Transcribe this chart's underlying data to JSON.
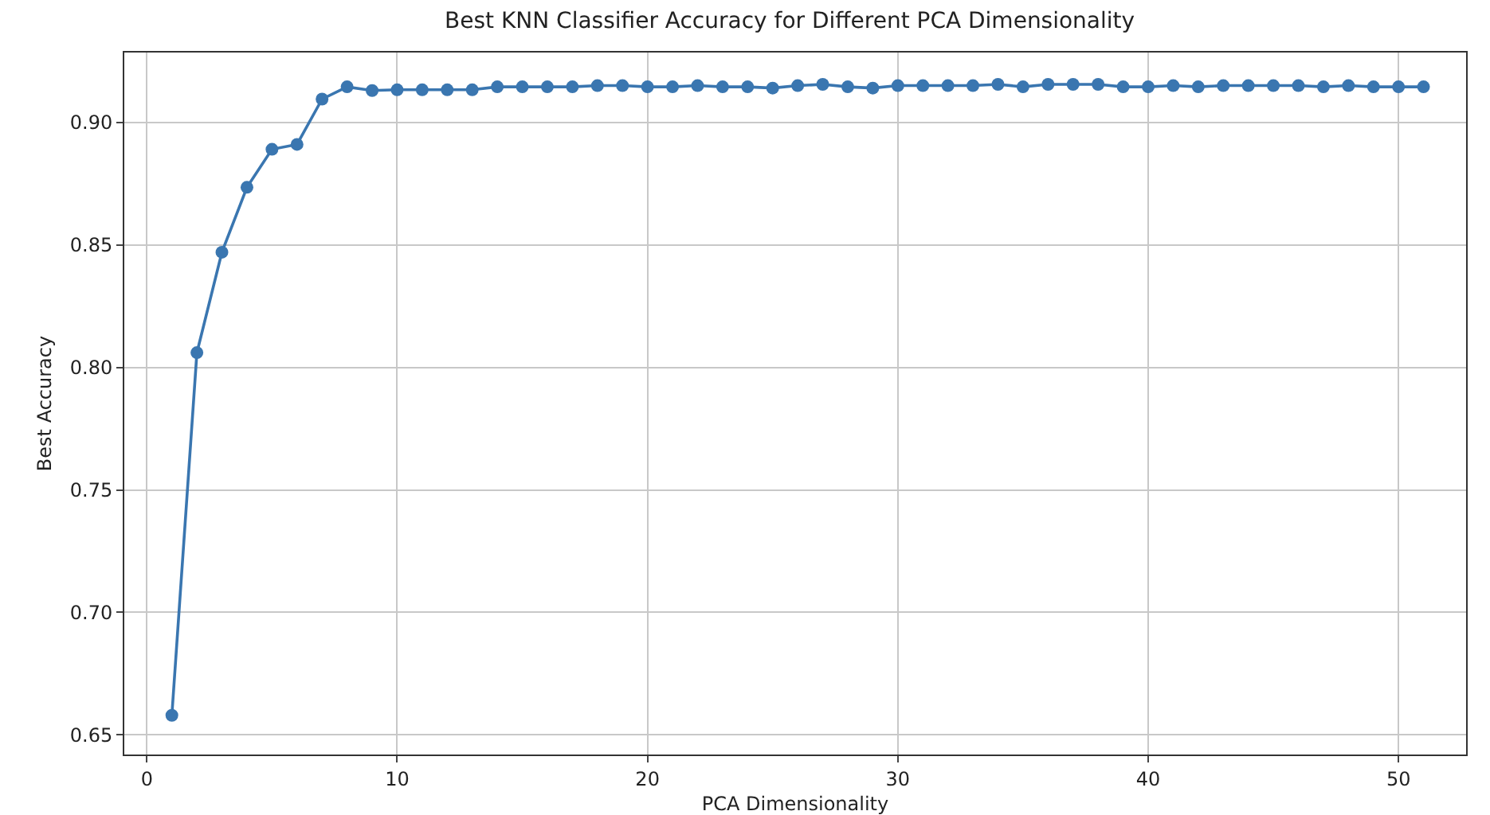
{
  "chart_data": {
    "type": "line",
    "title": "Best KNN Classifier Accuracy for Different PCA Dimensionality",
    "xlabel": "PCA Dimensionality",
    "ylabel": "Best Accuracy",
    "x": [
      1,
      2,
      3,
      4,
      5,
      6,
      7,
      8,
      9,
      10,
      11,
      12,
      13,
      14,
      15,
      16,
      17,
      18,
      19,
      20,
      21,
      22,
      23,
      24,
      25,
      26,
      27,
      28,
      29,
      30,
      31,
      32,
      33,
      34,
      35,
      36,
      37,
      38,
      39,
      40,
      41,
      42,
      43,
      44,
      45,
      46,
      47,
      48,
      49,
      50,
      51
    ],
    "series": [
      {
        "color": "#3a76b0",
        "values": [
          0.658,
          0.806,
          0.847,
          0.8735,
          0.889,
          0.891,
          0.9095,
          0.9145,
          0.913,
          0.9133,
          0.9133,
          0.9133,
          0.9133,
          0.9145,
          0.9145,
          0.9145,
          0.9145,
          0.915,
          0.915,
          0.9145,
          0.9145,
          0.915,
          0.9145,
          0.9145,
          0.914,
          0.915,
          0.9155,
          0.9145,
          0.914,
          0.915,
          0.915,
          0.915,
          0.915,
          0.9155,
          0.9145,
          0.9155,
          0.9155,
          0.9155,
          0.9145,
          0.9145,
          0.915,
          0.9145,
          0.915,
          0.915,
          0.915,
          0.915,
          0.9145,
          0.915,
          0.9145,
          0.9145,
          0.9145
        ]
      }
    ],
    "xlim": [
      -0.9,
      52.7
    ],
    "xticks": [
      0,
      10,
      20,
      30,
      40,
      50
    ],
    "ylim": [
      0.642,
      0.9285
    ],
    "yticks": [
      {
        "value": 0.65,
        "label": "0.65"
      },
      {
        "value": 0.7,
        "label": "0.70"
      },
      {
        "value": 0.75,
        "label": "0.75"
      },
      {
        "value": 0.8,
        "label": "0.80"
      },
      {
        "value": 0.85,
        "label": "0.85"
      },
      {
        "value": 0.9,
        "label": "0.90"
      }
    ],
    "grid": true,
    "marker": "circle",
    "line_style": "solid"
  }
}
